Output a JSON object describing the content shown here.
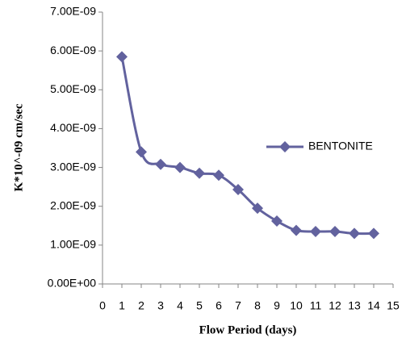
{
  "chart_data": {
    "type": "line",
    "x_label": "Flow Period (days)",
    "y_label": "K*10^-09 cm/sec",
    "x": [
      1,
      2,
      3,
      4,
      5,
      6,
      7,
      8,
      9,
      10,
      11,
      12,
      13,
      14
    ],
    "series": [
      {
        "name": "BENTONITE",
        "color": "#62629e",
        "values": [
          5.85e-09,
          3.4e-09,
          3.08e-09,
          3e-09,
          2.85e-09,
          2.8e-09,
          2.43e-09,
          1.95e-09,
          1.62e-09,
          1.38e-09,
          1.35e-09,
          1.35e-09,
          1.3e-09,
          1.3e-09
        ]
      }
    ],
    "xlim": [
      0,
      15
    ],
    "xticks": [
      0,
      1,
      2,
      3,
      4,
      5,
      6,
      7,
      8,
      9,
      10,
      11,
      12,
      13,
      14,
      15
    ],
    "ylim": [
      0,
      7e-09
    ],
    "yticks": [
      {
        "value": 0,
        "label": "0.00E+00"
      },
      {
        "value": 1e-09,
        "label": "1.00E-09"
      },
      {
        "value": 2e-09,
        "label": "2.00E-09"
      },
      {
        "value": 3e-09,
        "label": "3.00E-09"
      },
      {
        "value": 4e-09,
        "label": "4.00E-09"
      },
      {
        "value": 5e-09,
        "label": "5.00E-09"
      },
      {
        "value": 6e-09,
        "label": "6.00E-09"
      },
      {
        "value": 7e-09,
        "label": "7.00E-09"
      }
    ],
    "grid": false,
    "smooth": true,
    "legend": "right"
  }
}
